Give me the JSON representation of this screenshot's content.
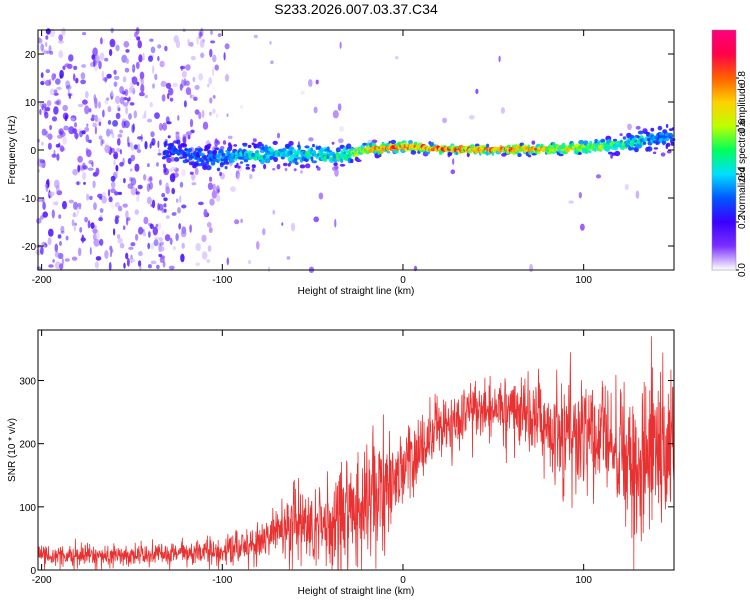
{
  "title": "S233.2026.007.03.37.C34",
  "colors": {
    "snr_line": "#e83232",
    "frame": "#000000",
    "background": "#ffffff"
  },
  "chart_data": [
    {
      "type": "heatmap",
      "title": "S233.2026.007.03.37.C34",
      "xlabel": "Height of straight line (km)",
      "ylabel": "Frequency (Hz)",
      "xlim": [
        -202,
        150
      ],
      "ylim": [
        -25,
        25
      ],
      "xticks": [
        {
          "value": -200,
          "label": "-200"
        },
        {
          "value": -100,
          "label": "-100"
        },
        {
          "value": 0,
          "label": "0"
        },
        {
          "value": 100,
          "label": "100"
        }
      ],
      "yticks": [
        {
          "value": 20,
          "label": "20"
        },
        {
          "value": 10,
          "label": "10"
        },
        {
          "value": 0,
          "label": "0"
        },
        {
          "value": -10,
          "label": "-10"
        },
        {
          "value": -20,
          "label": "-20"
        }
      ],
      "colorbar": {
        "label": "Normalized spectral amplitude",
        "range": [
          0,
          1
        ],
        "ticks": [
          {
            "value": 0.0,
            "label": "0.0"
          },
          {
            "value": 0.2,
            "label": "0.2"
          },
          {
            "value": 0.4,
            "label": "0.4"
          },
          {
            "value": 0.6,
            "label": "0.6"
          },
          {
            "value": 0.8,
            "label": "0.8"
          }
        ],
        "colormap": [
          "#ffffff",
          "#7b2fff",
          "#3a00ff",
          "#0057ff",
          "#00e0ff",
          "#00ff5a",
          "#bfff00",
          "#ffd000",
          "#ff6000",
          "#ff0048",
          "#ff007f"
        ]
      },
      "ridge": {
        "x": [
          -130,
          -110,
          -100,
          -90,
          -80,
          -70,
          -60,
          -50,
          -40,
          -30,
          -20,
          -10,
          0,
          20,
          40,
          60,
          80,
          100,
          120,
          140,
          150
        ],
        "freq": [
          0,
          -1.5,
          -2,
          -1,
          -1.5,
          -0.5,
          -1,
          -0.8,
          -1.2,
          -1,
          0.2,
          0.3,
          0.8,
          0.2,
          0.1,
          0.1,
          0.2,
          0.5,
          1,
          2.5,
          3
        ],
        "amplitude": [
          0.3,
          0.35,
          0.4,
          0.45,
          0.5,
          0.5,
          0.5,
          0.5,
          0.55,
          0.6,
          0.8,
          0.85,
          0.9,
          0.95,
          0.95,
          0.9,
          0.8,
          0.7,
          0.6,
          0.4,
          0.35
        ],
        "spread": [
          2.5,
          2.5,
          2.2,
          2.0,
          2.0,
          1.8,
          1.8,
          1.7,
          1.5,
          1.4,
          0.9,
          0.8,
          0.8,
          0.6,
          0.6,
          0.7,
          0.9,
          1.0,
          1.3,
          2.0,
          2.5
        ]
      }
    },
    {
      "type": "line",
      "xlabel": "Height of straight line (km)",
      "ylabel": "SNR (10 * v/v)",
      "xlim": [
        -202,
        150
      ],
      "ylim": [
        0,
        380
      ],
      "xticks": [
        {
          "value": -200,
          "label": "-200"
        },
        {
          "value": -100,
          "label": "-100"
        },
        {
          "value": 0,
          "label": "0"
        },
        {
          "value": 100,
          "label": "100"
        }
      ],
      "yticks": [
        {
          "value": 0,
          "label": "0"
        },
        {
          "value": 100,
          "label": "100"
        },
        {
          "value": 200,
          "label": "200"
        },
        {
          "value": 300,
          "label": "300"
        }
      ],
      "envelope": {
        "x": [
          -202,
          -180,
          -160,
          -140,
          -120,
          -100,
          -90,
          -80,
          -70,
          -60,
          -50,
          -40,
          -30,
          -25,
          -20,
          -15,
          -10,
          -5,
          0,
          10,
          20,
          30,
          40,
          50,
          60,
          70,
          80,
          90,
          100,
          110,
          120,
          130,
          140,
          150
        ],
        "mean": [
          22,
          22,
          23,
          24,
          26,
          30,
          35,
          45,
          60,
          75,
          70,
          65,
          80,
          95,
          110,
          120,
          140,
          150,
          160,
          190,
          220,
          240,
          250,
          255,
          250,
          245,
          230,
          220,
          210,
          200,
          185,
          175,
          190,
          200
        ],
        "amplitude": [
          15,
          15,
          15,
          15,
          18,
          22,
          26,
          30,
          40,
          55,
          60,
          80,
          90,
          90,
          80,
          75,
          70,
          65,
          55,
          50,
          45,
          45,
          40,
          40,
          45,
          55,
          70,
          90,
          100,
          100,
          100,
          110,
          130,
          150
        ]
      }
    }
  ]
}
